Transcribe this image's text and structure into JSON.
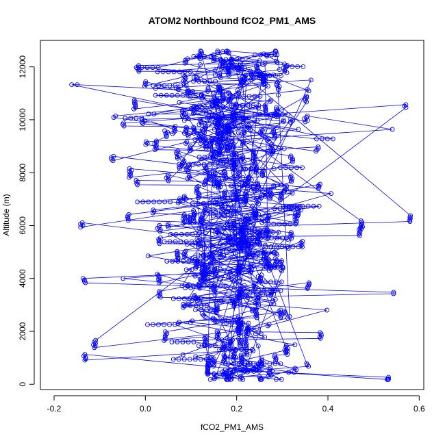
{
  "chart_data": {
    "type": "scatter",
    "title": "ATOM2 Northbound fCO2_PM1_AMS",
    "xlabel": "fCO2_PM1_AMS",
    "ylabel": "Altitude (m)",
    "xlim": [
      -0.23,
      0.61
    ],
    "ylim": [
      -200,
      13000
    ],
    "x_ticks": [
      -0.2,
      0.0,
      0.2,
      0.4,
      0.6
    ],
    "x_tick_labels": [
      "-0.2",
      "0.0",
      "0.2",
      "0.4",
      "0.6"
    ],
    "y_ticks": [
      0,
      2000,
      4000,
      6000,
      8000,
      10000,
      12000
    ],
    "y_tick_labels": [
      "0",
      "2000",
      "4000",
      "6000",
      "8000",
      "10000",
      "12000"
    ],
    "grid": false,
    "legend": "none",
    "series_color": "#0000ff",
    "marker": "open-circle",
    "connected": true,
    "approx_x_range": [
      -0.21,
      0.59
    ],
    "approx_y_range": [
      180,
      12600
    ]
  }
}
